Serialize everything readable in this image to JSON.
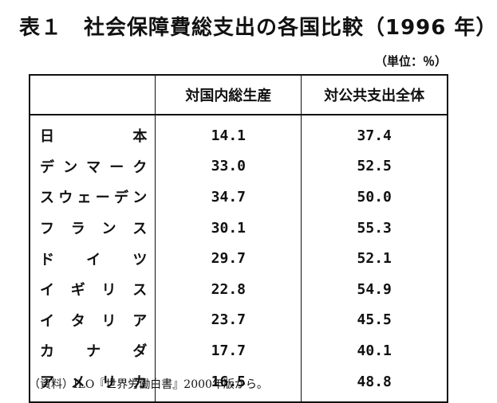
{
  "title": "表１　社会保障費総支出の各国比較（1996 年）",
  "unit": "（単位：％）",
  "table": {
    "headers": [
      "",
      "対国内総生産",
      "対公共支出全体"
    ],
    "rows": [
      {
        "country": "日本",
        "gdp": "14.1",
        "public": "37.4"
      },
      {
        "country": "デンマーク",
        "gdp": "33.0",
        "public": "52.5"
      },
      {
        "country": "スウェーデン",
        "gdp": "34.7",
        "public": "50.0"
      },
      {
        "country": "フランス",
        "gdp": "30.1",
        "public": "55.3"
      },
      {
        "country": "ドイツ",
        "gdp": "29.7",
        "public": "52.1"
      },
      {
        "country": "イギリス",
        "gdp": "22.8",
        "public": "54.9"
      },
      {
        "country": "イタリア",
        "gdp": "23.7",
        "public": "45.5"
      },
      {
        "country": "カナダ",
        "gdp": "17.7",
        "public": "40.1"
      },
      {
        "country": "アメリカ",
        "gdp": "16.5",
        "public": "48.8"
      }
    ]
  },
  "source": "（資料）ILO『世界労働白書』2000年版から。"
}
